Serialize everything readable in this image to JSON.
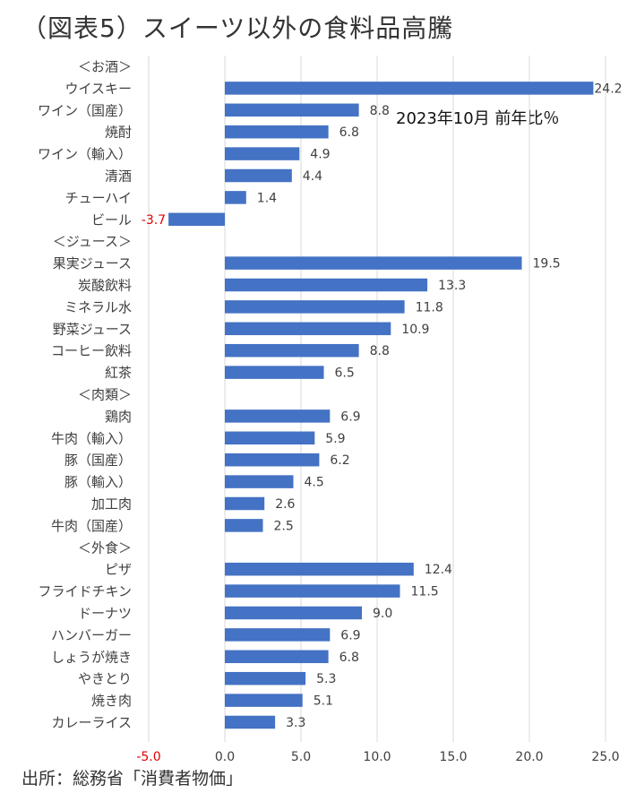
{
  "chart_data": {
    "type": "bar",
    "orientation": "horizontal",
    "title": "（図表5）スイーツ以外の食料品高騰",
    "annotation": "2023年10月 前年比％",
    "source": "出所：総務省「消費者物価」",
    "xlim": [
      -5.0,
      25.0
    ],
    "xticks": [
      "-5.0",
      "0.0",
      "5.0",
      "10.0",
      "15.0",
      "20.0",
      "25.0"
    ],
    "grid": true,
    "colors": {
      "bar": "#4472c4",
      "negative_label": "#e00000",
      "grid": "#d9d9d9",
      "text": "#404040"
    },
    "categories": [
      {
        "label": "＜お酒＞",
        "header": true
      },
      {
        "label": "ウイスキー",
        "value": 24.2,
        "value_label": "24.2"
      },
      {
        "label": "ワイン（国産）",
        "value": 8.8,
        "value_label": "8.8"
      },
      {
        "label": "焼酎",
        "value": 6.8,
        "value_label": "6.8"
      },
      {
        "label": "ワイン（輸入）",
        "value": 4.9,
        "value_label": "4.9"
      },
      {
        "label": "清酒",
        "value": 4.4,
        "value_label": "4.4"
      },
      {
        "label": "チューハイ",
        "value": 1.4,
        "value_label": "1.4"
      },
      {
        "label": "ビール",
        "value": -3.7,
        "value_label": "-3.7"
      },
      {
        "label": "＜ジュース＞",
        "header": true
      },
      {
        "label": "果実ジュース",
        "value": 19.5,
        "value_label": "19.5"
      },
      {
        "label": "炭酸飲料",
        "value": 13.3,
        "value_label": "13.3"
      },
      {
        "label": "ミネラル水",
        "value": 11.8,
        "value_label": "11.8"
      },
      {
        "label": "野菜ジュース",
        "value": 10.9,
        "value_label": "10.9"
      },
      {
        "label": "コーヒー飲料",
        "value": 8.8,
        "value_label": "8.8"
      },
      {
        "label": "紅茶",
        "value": 6.5,
        "value_label": "6.5"
      },
      {
        "label": "＜肉類＞",
        "header": true
      },
      {
        "label": "鶏肉",
        "value": 6.9,
        "value_label": "6.9"
      },
      {
        "label": "牛肉（輸入）",
        "value": 5.9,
        "value_label": "5.9"
      },
      {
        "label": "豚（国産）",
        "value": 6.2,
        "value_label": "6.2"
      },
      {
        "label": "豚（輸入）",
        "value": 4.5,
        "value_label": "4.5"
      },
      {
        "label": "加工肉",
        "value": 2.6,
        "value_label": "2.6"
      },
      {
        "label": "牛肉（国産）",
        "value": 2.5,
        "value_label": "2.5"
      },
      {
        "label": "＜外食＞",
        "header": true
      },
      {
        "label": "ピザ",
        "value": 12.4,
        "value_label": "12.4"
      },
      {
        "label": "フライドチキン",
        "value": 11.5,
        "value_label": "11.5"
      },
      {
        "label": "ドーナツ",
        "value": 9.0,
        "value_label": "9.0"
      },
      {
        "label": "ハンバーガー",
        "value": 6.9,
        "value_label": "6.9"
      },
      {
        "label": "しょうが焼き",
        "value": 6.8,
        "value_label": "6.8"
      },
      {
        "label": "やきとり",
        "value": 5.3,
        "value_label": "5.3"
      },
      {
        "label": "焼き肉",
        "value": 5.1,
        "value_label": "5.1"
      },
      {
        "label": "カレーライス",
        "value": 3.3,
        "value_label": "3.3"
      }
    ]
  }
}
